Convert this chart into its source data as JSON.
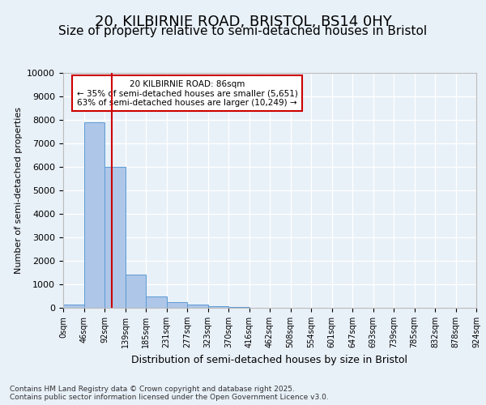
{
  "title1": "20, KILBIRNIE ROAD, BRISTOL, BS14 0HY",
  "title2": "Size of property relative to semi-detached houses in Bristol",
  "xlabel": "Distribution of semi-detached houses by size in Bristol",
  "ylabel": "Number of semi-detached properties",
  "bar_values": [
    150,
    7900,
    6000,
    1400,
    480,
    230,
    130,
    60,
    30,
    10,
    5,
    3,
    2,
    1,
    1,
    1,
    1,
    0,
    0,
    0
  ],
  "bar_labels": [
    "0sqm",
    "46sqm",
    "92sqm",
    "139sqm",
    "185sqm",
    "231sqm",
    "277sqm",
    "323sqm",
    "370sqm",
    "416sqm",
    "462sqm",
    "508sqm",
    "554sqm",
    "601sqm",
    "647sqm",
    "693sqm",
    "739sqm",
    "785sqm",
    "832sqm",
    "878sqm",
    "924sqm"
  ],
  "bar_color": "#aec6e8",
  "bar_edge_color": "#5b9bd5",
  "vline_x": 1.86,
  "vline_color": "#cc0000",
  "annotation_text": "20 KILBIRNIE ROAD: 86sqm\n← 35% of semi-detached houses are smaller (5,651)\n63% of semi-detached houses are larger (10,249) →",
  "annotation_box_color": "#ffffff",
  "annotation_box_edge": "#cc0000",
  "ylim": [
    0,
    10000
  ],
  "yticks": [
    0,
    1000,
    2000,
    3000,
    4000,
    5000,
    6000,
    7000,
    8000,
    9000,
    10000
  ],
  "footer_text": "Contains HM Land Registry data © Crown copyright and database right 2025.\nContains public sector information licensed under the Open Government Licence v3.0.",
  "bg_color": "#e8f0f8",
  "plot_bg_color": "#e8f0f8",
  "grid_color": "#ffffff",
  "title1_fontsize": 13,
  "title2_fontsize": 11
}
